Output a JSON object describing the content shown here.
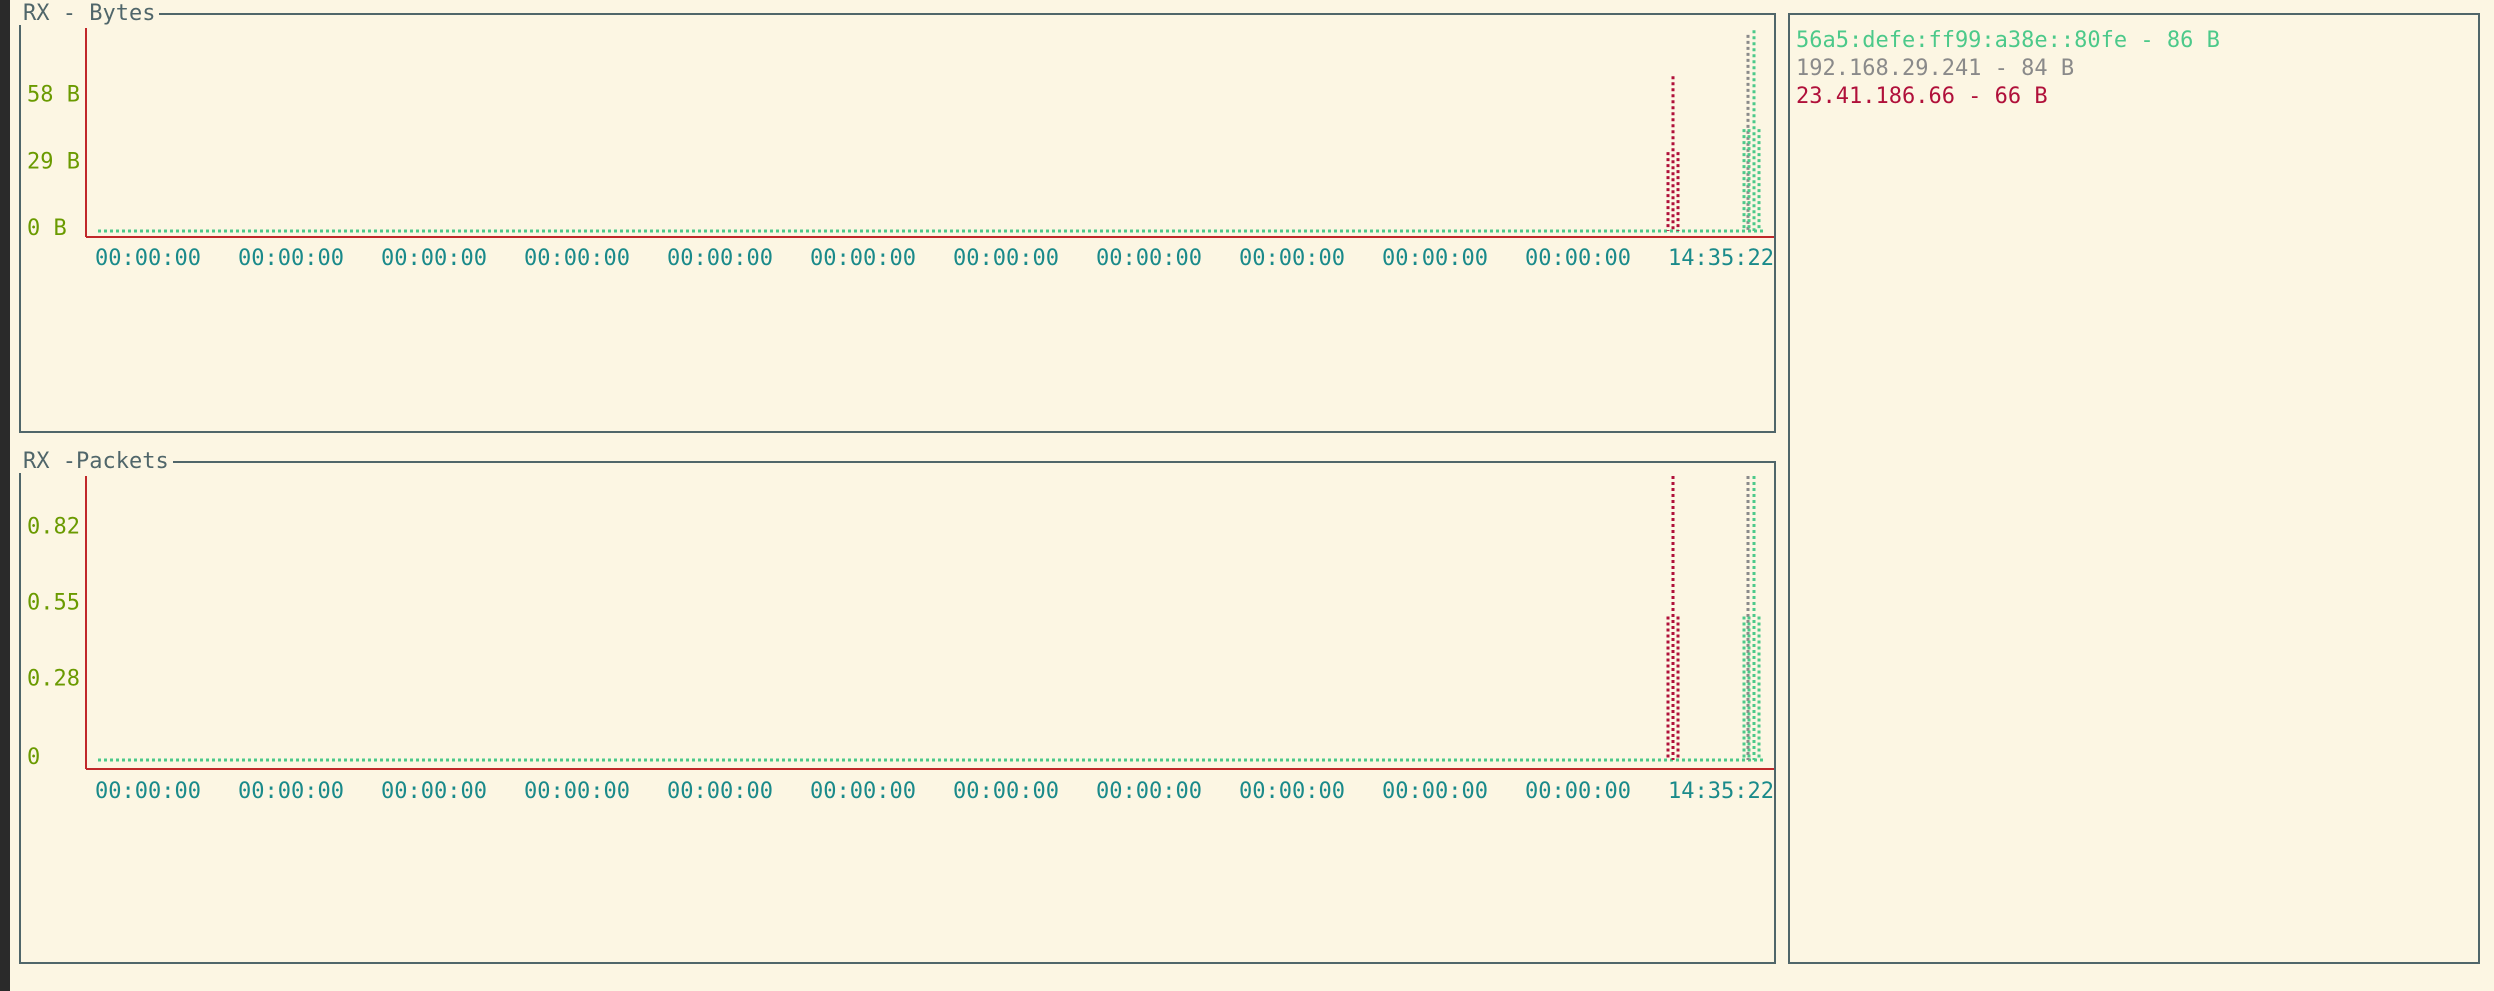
{
  "colors": {
    "background": "#fcf6e3",
    "border": "#50666a",
    "axis": "#c0282a",
    "tick_y": "#6a9a00",
    "tick_x": "#1a8a8a",
    "series_green": "#4cc98a",
    "series_gray": "#8a8a8a",
    "series_red": "#b0103a"
  },
  "panels": {
    "bytes_title": "RX - Bytes",
    "packets_title": "RX -Packets"
  },
  "legend": {
    "items": [
      {
        "label": "56a5:defe:ff99:a38e::80fe - 86 B",
        "color": "#4cc98a"
      },
      {
        "label": "192.168.29.241 - 84 B",
        "color": "#8a8a8a"
      },
      {
        "label": "23.41.186.66 - 66 B",
        "color": "#b0103a"
      }
    ]
  },
  "chart_data": [
    {
      "type": "bar",
      "title": "RX - Bytes",
      "y_ticks": [
        "58 B",
        "29 B",
        "0 B"
      ],
      "y_tick_values": [
        58,
        29,
        0
      ],
      "ylim": [
        0,
        87
      ],
      "x_tick_labels": [
        "00:00:00",
        "00:00:00",
        "00:00:00",
        "00:00:00",
        "00:00:00",
        "00:00:00",
        "00:00:00",
        "00:00:00",
        "00:00:00",
        "00:00:00",
        "00:00:00",
        "14:35:22"
      ],
      "series": [
        {
          "name": "23.41.186.66",
          "color": "#b0103a",
          "values": [
            66
          ]
        },
        {
          "name": "192.168.29.241",
          "color": "#8a8a8a",
          "values": [
            84
          ]
        },
        {
          "name": "56a5:defe:ff99:a38e::80fe",
          "color": "#4cc98a",
          "values": [
            86
          ]
        }
      ]
    },
    {
      "type": "bar",
      "title": "RX -Packets",
      "y_ticks": [
        "0.82",
        "0.55",
        "0.28",
        "0"
      ],
      "y_tick_values": [
        0.82,
        0.55,
        0.28,
        0
      ],
      "ylim": [
        0,
        1
      ],
      "x_tick_labels": [
        "00:00:00",
        "00:00:00",
        "00:00:00",
        "00:00:00",
        "00:00:00",
        "00:00:00",
        "00:00:00",
        "00:00:00",
        "00:00:00",
        "00:00:00",
        "00:00:00",
        "14:35:22"
      ],
      "series": [
        {
          "name": "23.41.186.66",
          "color": "#b0103a",
          "values": [
            1
          ]
        },
        {
          "name": "192.168.29.241",
          "color": "#8a8a8a",
          "values": [
            1
          ]
        },
        {
          "name": "56a5:defe:ff99:a38e::80fe",
          "color": "#4cc98a",
          "values": [
            1
          ]
        }
      ]
    }
  ]
}
